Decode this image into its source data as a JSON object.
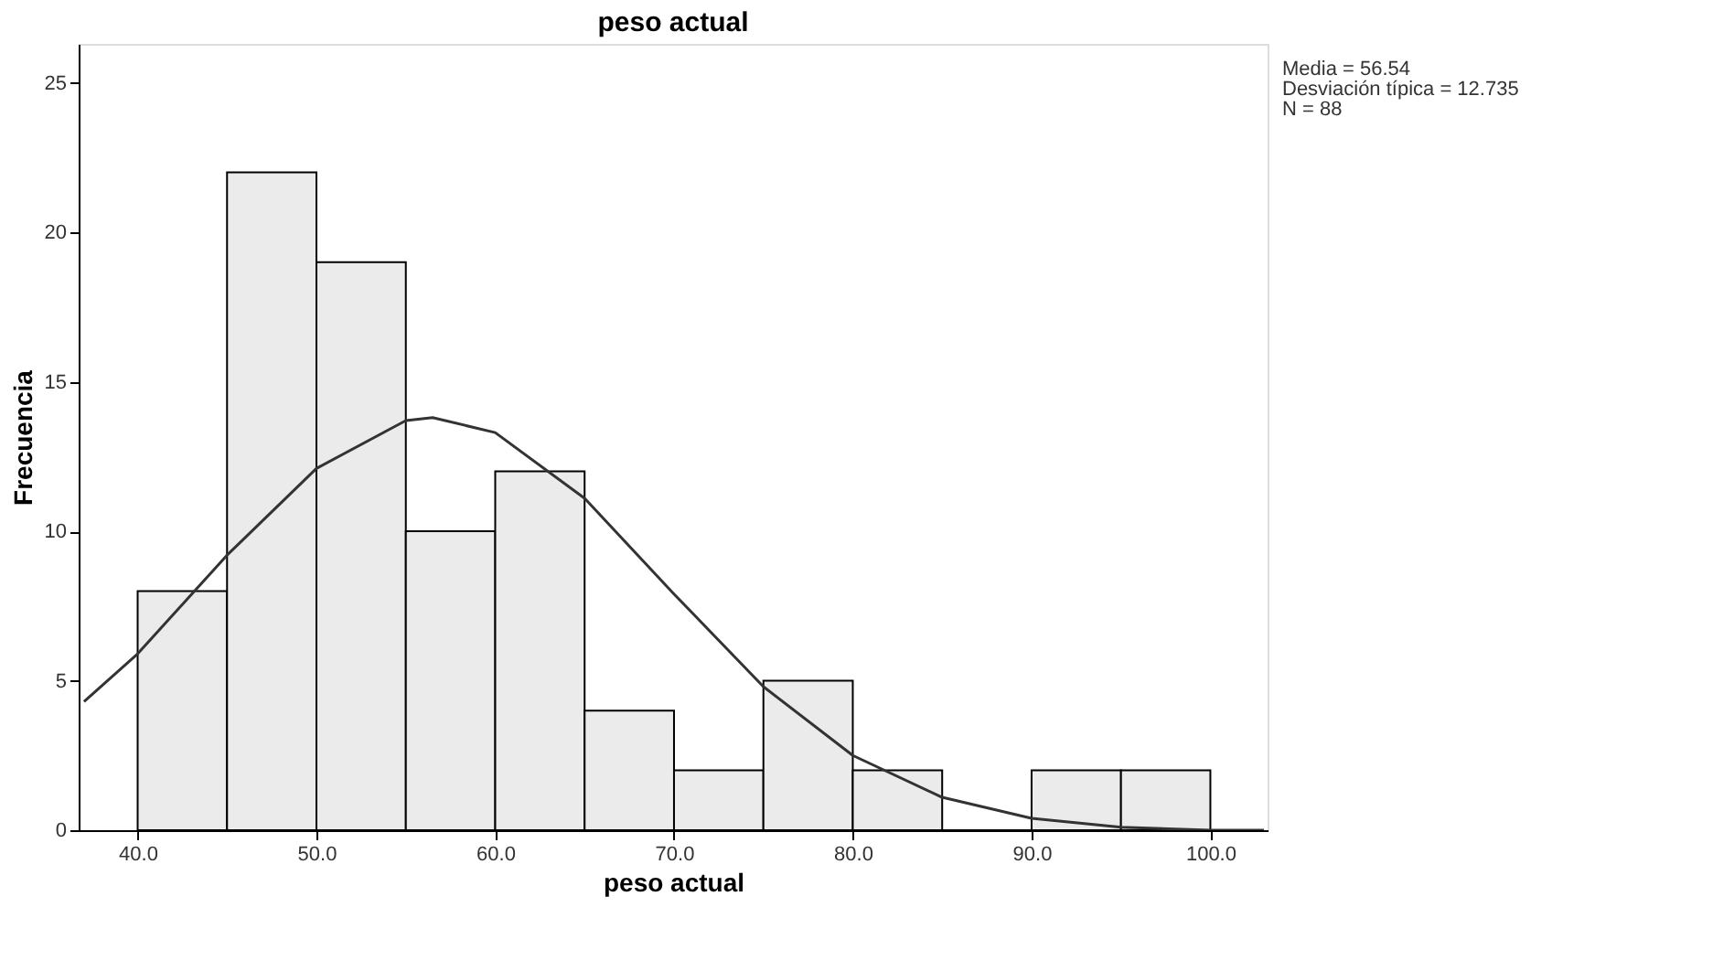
{
  "chart_data": {
    "type": "histogram",
    "title": "peso actual",
    "xlabel": "peso actual",
    "ylabel": "Frecuencia",
    "bins": [
      40,
      45,
      50,
      55,
      60,
      65,
      70,
      75,
      80,
      85,
      90,
      95,
      100
    ],
    "values": [
      8,
      22,
      19,
      10,
      12,
      4,
      2,
      5,
      2,
      0,
      2,
      2
    ],
    "color": "#ebebeb",
    "series": [
      {
        "type": "line",
        "color": "#333333",
        "x": [
          37,
          40,
          45,
          50,
          55,
          56.5,
          60,
          65,
          70,
          75,
          80,
          85,
          90,
          95,
          100,
          103
        ],
        "values": [
          4.3,
          5.9,
          9.2,
          12.1,
          13.7,
          13.8,
          13.3,
          11.1,
          7.9,
          4.8,
          2.5,
          1.1,
          0.4,
          0.1,
          0.0,
          0.0
        ]
      }
    ],
    "xlim": [
      36.7,
      103.2
    ],
    "ylim": [
      0,
      26.3
    ],
    "xticks": [
      {
        "value": 40,
        "label": "40.0"
      },
      {
        "value": 50,
        "label": "50.0"
      },
      {
        "value": 60,
        "label": "60.0"
      },
      {
        "value": 70,
        "label": "70.0"
      },
      {
        "value": 80,
        "label": "80.0"
      },
      {
        "value": 90,
        "label": "90.0"
      },
      {
        "value": 100,
        "label": "100.0"
      }
    ],
    "yticks": [
      0,
      5,
      10,
      15,
      20,
      25
    ],
    "grid": false,
    "annotations": [
      "Media = 56.54",
      "Desviación típica = 12.735",
      "N = 88"
    ]
  }
}
